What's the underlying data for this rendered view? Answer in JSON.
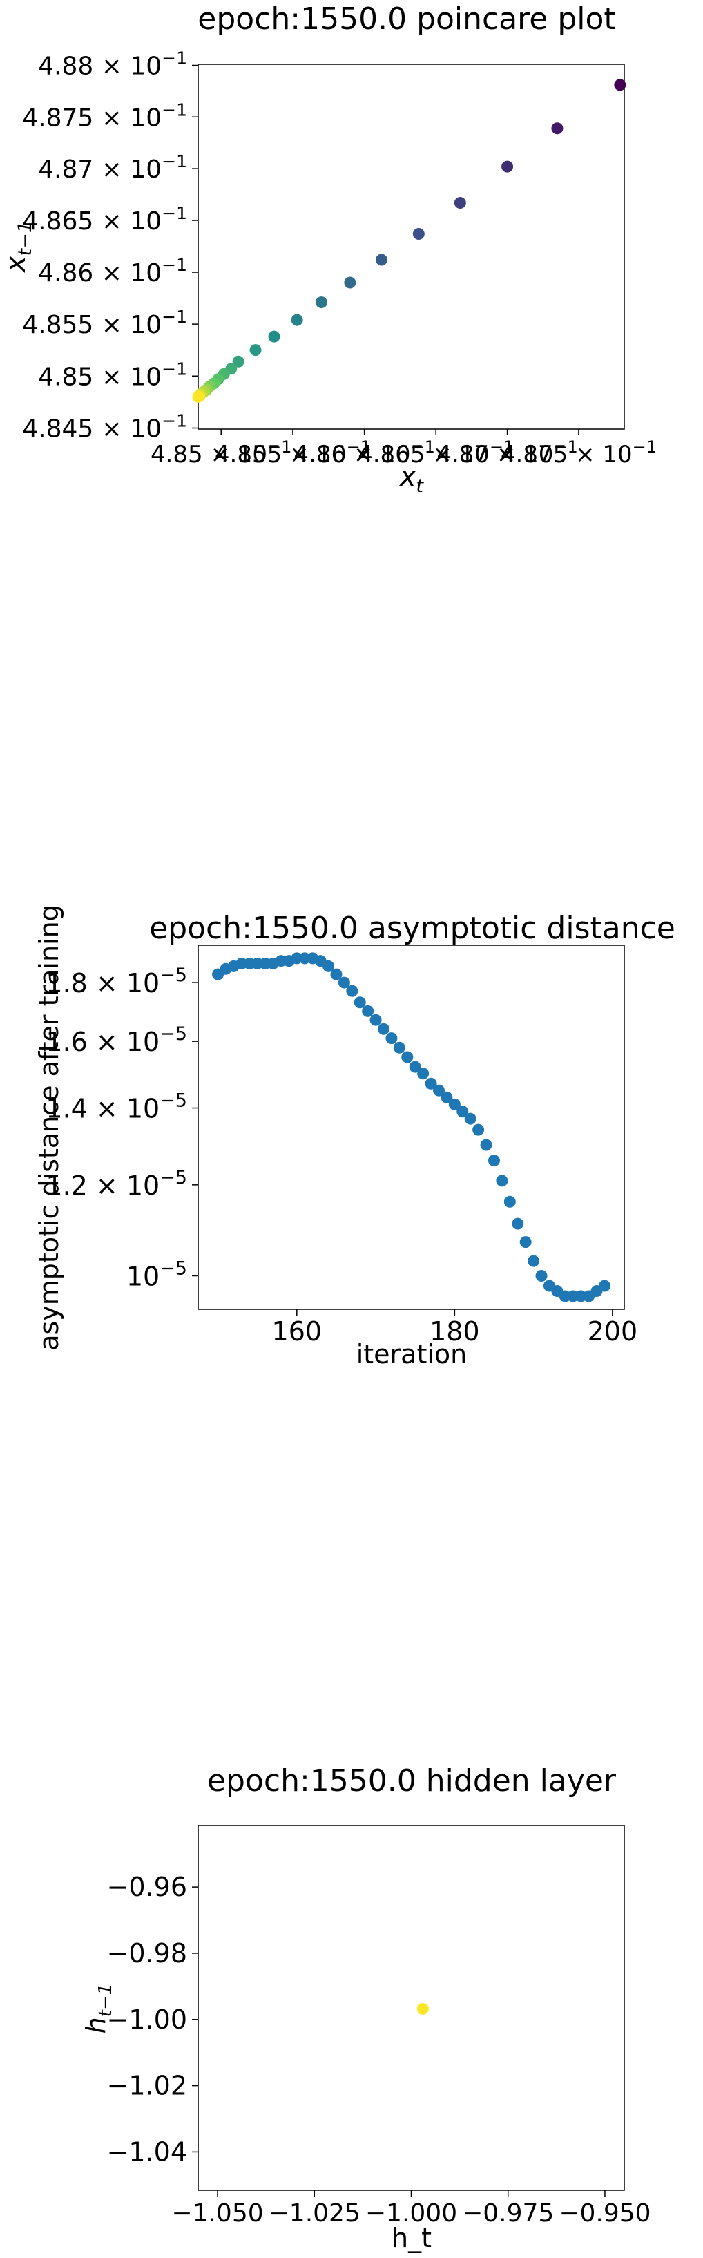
{
  "chart_data": [
    {
      "type": "scatter",
      "title": "epoch:1550.0 poincare plot",
      "xlabel_base": "x",
      "xlabel_sub": "t",
      "ylabel_base": "x",
      "ylabel_sub": "t−1",
      "xscale": "log",
      "yscale": "log",
      "xlim": [
        0.48484,
        0.48782
      ],
      "ylim": [
        0.48449,
        0.48801
      ],
      "xticks": [
        {
          "value": 0.485,
          "mantissa": "4.85"
        },
        {
          "value": 0.4855,
          "mantissa": "4.855"
        },
        {
          "value": 0.486,
          "mantissa": "4.86"
        },
        {
          "value": 0.4865,
          "mantissa": "4.865"
        },
        {
          "value": 0.487,
          "mantissa": "4.87"
        },
        {
          "value": 0.4875,
          "mantissa": "4.875"
        }
      ],
      "yticks": [
        {
          "value": 0.4845,
          "mantissa": "4.845"
        },
        {
          "value": 0.485,
          "mantissa": "4.85"
        },
        {
          "value": 0.4855,
          "mantissa": "4.855"
        },
        {
          "value": 0.486,
          "mantissa": "4.86"
        },
        {
          "value": 0.4865,
          "mantissa": "4.865"
        },
        {
          "value": 0.487,
          "mantissa": "4.87"
        },
        {
          "value": 0.4875,
          "mantissa": "4.875"
        },
        {
          "value": 0.488,
          "mantissa": "4.88"
        }
      ],
      "tick_base": "10",
      "tick_exponent": "−1",
      "colormap": [
        "#440154",
        "#3b528b",
        "#21918c",
        "#5ec962",
        "#fde725"
      ],
      "x": [
        0.48779,
        0.48735,
        0.487,
        0.48667,
        0.48638,
        0.48612,
        0.4859,
        0.4857,
        0.48553,
        0.48537,
        0.48524,
        0.48512,
        0.48507,
        0.48502,
        0.48498,
        0.48495,
        0.48492,
        0.4849,
        0.48488,
        0.48486,
        0.48485,
        0.48484
      ],
      "y": [
        0.48781,
        0.48739,
        0.48702,
        0.48667,
        0.48637,
        0.48612,
        0.4859,
        0.48571,
        0.48554,
        0.48538,
        0.48525,
        0.48514,
        0.48507,
        0.48502,
        0.48497,
        0.48493,
        0.4849,
        0.48487,
        0.48485,
        0.48483,
        0.48481,
        0.4848
      ]
    },
    {
      "type": "scatter",
      "title": "epoch:1550.0 asymptotic distance",
      "xlabel": "iteration",
      "ylabel": "asymptotic distance after training",
      "yscale": "log",
      "xlim": [
        147.5,
        201.5
      ],
      "ylim": [
        9.35e-06,
        1.94e-05
      ],
      "xticks": [
        {
          "value": 160,
          "label": "160"
        },
        {
          "value": 180,
          "label": "180"
        },
        {
          "value": 200,
          "label": "200"
        }
      ],
      "yticks": [
        {
          "value": 1e-05,
          "mantissa": "",
          "exponent": "−5"
        },
        {
          "value": 1.2e-05,
          "mantissa": "1.2",
          "exponent": "−5"
        },
        {
          "value": 1.4e-05,
          "mantissa": "1.4",
          "exponent": "−5"
        },
        {
          "value": 1.6e-05,
          "mantissa": "1.6",
          "exponent": "−5"
        },
        {
          "value": 1.8e-05,
          "mantissa": "1.8",
          "exponent": "−5"
        }
      ],
      "tick_base": "10",
      "color": "#1f77b4",
      "x": [
        150,
        151,
        152,
        153,
        154,
        155,
        156,
        157,
        158,
        159,
        160,
        161,
        162,
        163,
        164,
        165,
        166,
        167,
        168,
        169,
        170,
        171,
        172,
        173,
        174,
        175,
        176,
        177,
        178,
        179,
        180,
        181,
        182,
        183,
        184,
        185,
        186,
        187,
        188,
        189,
        190,
        191,
        192,
        193,
        194,
        195,
        196,
        197,
        198,
        199
      ],
      "y": [
        1.83e-05,
        1.85e-05,
        1.86e-05,
        1.87e-05,
        1.87e-05,
        1.87e-05,
        1.87e-05,
        1.87e-05,
        1.88e-05,
        1.88e-05,
        1.89e-05,
        1.89e-05,
        1.89e-05,
        1.88e-05,
        1.86e-05,
        1.83e-05,
        1.8e-05,
        1.77e-05,
        1.73e-05,
        1.7e-05,
        1.67e-05,
        1.64e-05,
        1.61e-05,
        1.58e-05,
        1.55e-05,
        1.52e-05,
        1.5e-05,
        1.47e-05,
        1.45e-05,
        1.43e-05,
        1.41e-05,
        1.39e-05,
        1.37e-05,
        1.34e-05,
        1.3e-05,
        1.26e-05,
        1.21e-05,
        1.16e-05,
        1.11e-05,
        1.07e-05,
        1.03e-05,
        1e-05,
        9.8e-06,
        9.7e-06,
        9.6e-06,
        9.6e-06,
        9.6e-06,
        9.6e-06,
        9.7e-06,
        9.8e-06
      ]
    },
    {
      "type": "scatter",
      "title": "epoch:1550.0 hidden layer",
      "xlabel": "h_t",
      "ylabel_base": "h",
      "ylabel_sub": "t−1",
      "xlim": [
        -1.055,
        -0.945
      ],
      "ylim": [
        -1.0516,
        -0.9414
      ],
      "xticks": [
        {
          "value": -1.05,
          "label": "−1.050"
        },
        {
          "value": -1.025,
          "label": "−1.025"
        },
        {
          "value": -1.0,
          "label": "−1.000"
        },
        {
          "value": -0.975,
          "label": "−0.975"
        },
        {
          "value": -0.95,
          "label": "−0.950"
        }
      ],
      "yticks": [
        {
          "value": -1.04,
          "label": "−1.04"
        },
        {
          "value": -1.02,
          "label": "−1.02"
        },
        {
          "value": -1.0,
          "label": "−1.00"
        },
        {
          "value": -0.98,
          "label": "−0.98"
        },
        {
          "value": -0.96,
          "label": "−0.96"
        }
      ],
      "color": "#fde725",
      "x": [
        -0.997
      ],
      "y": [
        -0.9968
      ]
    }
  ]
}
